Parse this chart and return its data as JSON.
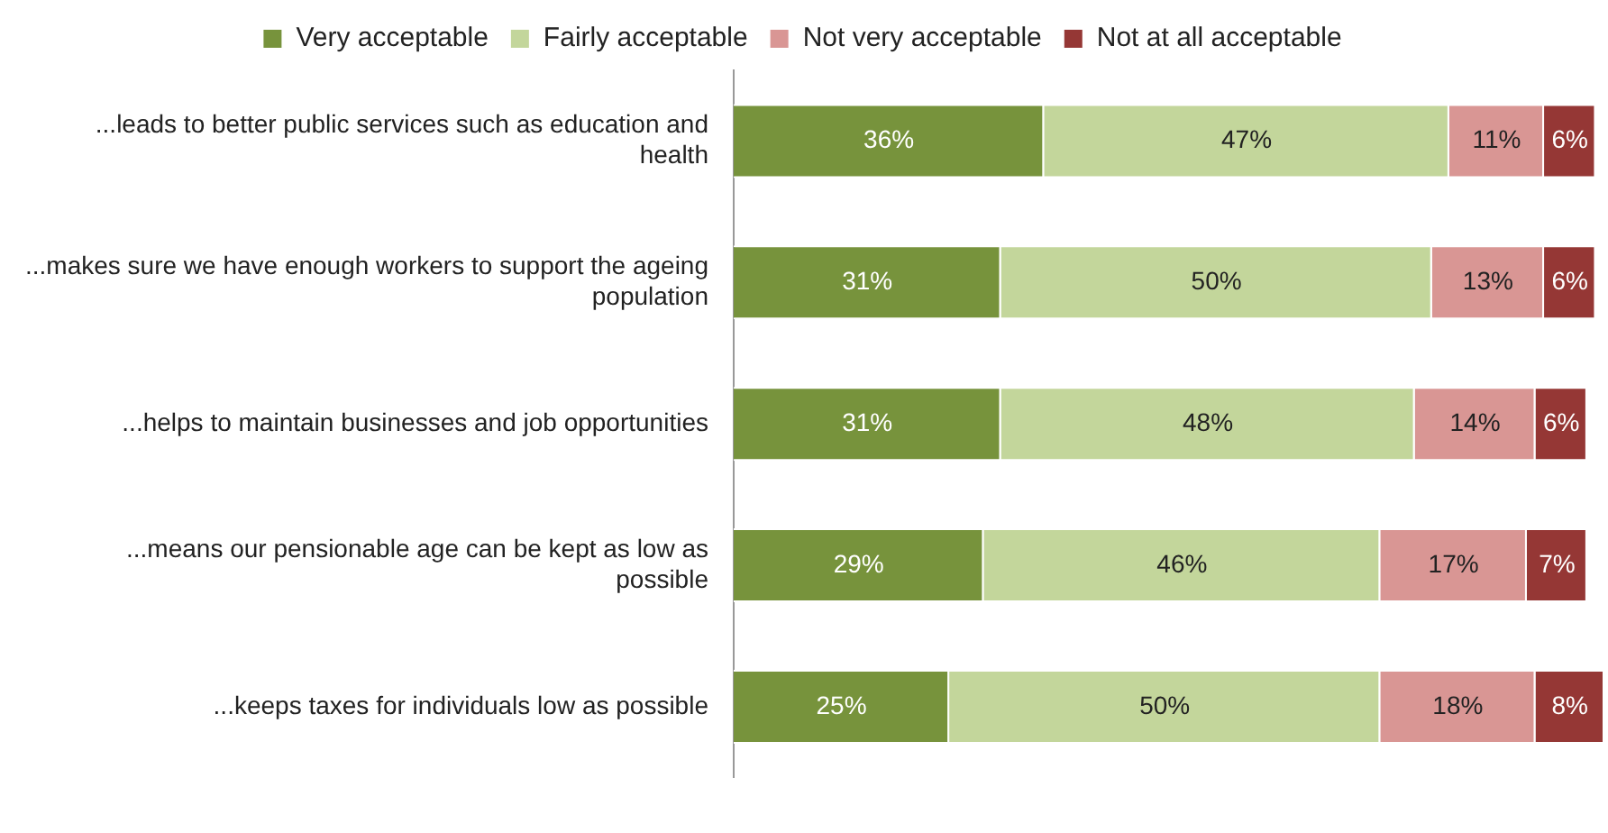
{
  "chart_data": {
    "type": "bar",
    "orientation": "horizontal",
    "stacked": true,
    "tick_labels": "y",
    "legend": "top",
    "grid": false,
    "categories": [
      "...leads to better public services such as education and health",
      "...makes sure we have enough workers to support the ageing population",
      "...helps to maintain businesses and job opportunities",
      "...means our pensionable age can be kept as low as possible",
      "...keeps taxes for individuals low as possible"
    ],
    "series": [
      {
        "name": "Very acceptable",
        "color": "#77933c",
        "values": [
          36,
          31,
          31,
          29,
          25
        ],
        "value_labels": [
          "36%",
          "31%",
          "31%",
          "29%",
          "25%"
        ]
      },
      {
        "name": "Fairly acceptable",
        "color": "#c3d69b",
        "values": [
          47,
          50,
          48,
          46,
          50
        ],
        "value_labels": [
          "47%",
          "50%",
          "48%",
          "46%",
          "50%"
        ]
      },
      {
        "name": "Not very acceptable",
        "color": "#d99694",
        "values": [
          11,
          13,
          14,
          17,
          18
        ],
        "value_labels": [
          "11%",
          "13%",
          "14%",
          "17%",
          "18%"
        ]
      },
      {
        "name": "Not at all acceptable",
        "color": "#953735",
        "values": [
          6,
          6,
          6,
          7,
          8
        ],
        "value_labels": [
          "6%",
          "6%",
          "6%",
          "7%",
          "8%"
        ]
      }
    ]
  }
}
